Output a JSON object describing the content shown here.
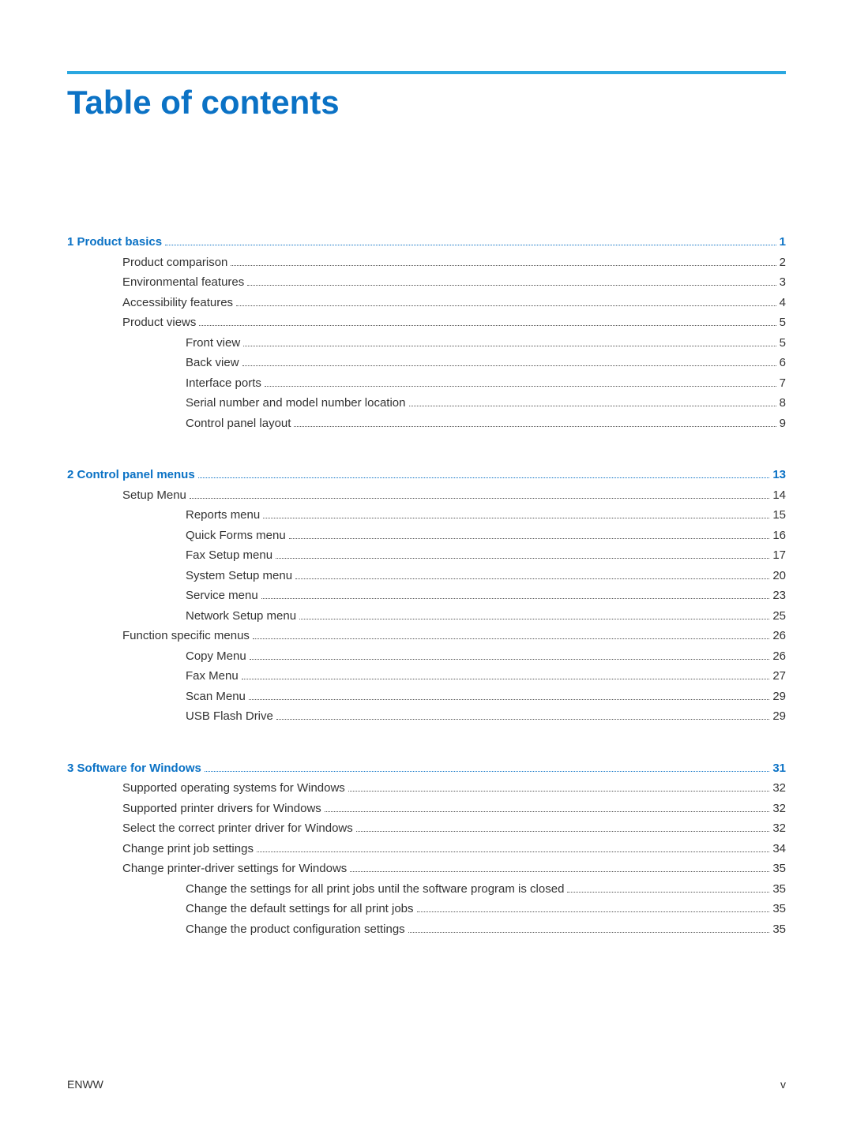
{
  "title": "Table of contents",
  "title_color": "#0b72c5",
  "rule_color": "#2aa7e0",
  "chapter_color": "#0b72c5",
  "body_color": "#333333",
  "footer": {
    "left": "ENWW",
    "right": "v"
  },
  "chapters": [
    {
      "num": "1",
      "label": "Product basics",
      "page": "1",
      "items": [
        {
          "label": "Product comparison",
          "page": "2",
          "level": 1
        },
        {
          "label": "Environmental features",
          "page": "3",
          "level": 1
        },
        {
          "label": "Accessibility features",
          "page": "4",
          "level": 1
        },
        {
          "label": "Product views",
          "page": "5",
          "level": 1
        },
        {
          "label": "Front view",
          "page": "5",
          "level": 2
        },
        {
          "label": "Back view",
          "page": "6",
          "level": 2
        },
        {
          "label": "Interface ports",
          "page": "7",
          "level": 2
        },
        {
          "label": "Serial number and model number location",
          "page": "8",
          "level": 2
        },
        {
          "label": "Control panel layout",
          "page": "9",
          "level": 2
        }
      ]
    },
    {
      "num": "2",
      "label": "Control panel menus",
      "page": "13",
      "items": [
        {
          "label": "Setup Menu",
          "page": "14",
          "level": 1
        },
        {
          "label": "Reports menu",
          "page": "15",
          "level": 2
        },
        {
          "label": "Quick Forms menu",
          "page": "16",
          "level": 2
        },
        {
          "label": "Fax Setup menu",
          "page": "17",
          "level": 2
        },
        {
          "label": "System Setup menu",
          "page": "20",
          "level": 2
        },
        {
          "label": "Service menu",
          "page": "23",
          "level": 2
        },
        {
          "label": "Network Setup menu",
          "page": "25",
          "level": 2
        },
        {
          "label": "Function specific menus",
          "page": "26",
          "level": 1
        },
        {
          "label": "Copy Menu",
          "page": "26",
          "level": 2
        },
        {
          "label": "Fax Menu",
          "page": "27",
          "level": 2
        },
        {
          "label": "Scan Menu",
          "page": "29",
          "level": 2
        },
        {
          "label": "USB Flash Drive",
          "page": "29",
          "level": 2
        }
      ]
    },
    {
      "num": "3",
      "label": "Software for Windows",
      "page": "31",
      "items": [
        {
          "label": "Supported operating systems for Windows",
          "page": "32",
          "level": 1
        },
        {
          "label": "Supported printer drivers for Windows",
          "page": "32",
          "level": 1
        },
        {
          "label": "Select the correct printer driver for Windows",
          "page": "32",
          "level": 1
        },
        {
          "label": "Change print job settings",
          "page": "34",
          "level": 1
        },
        {
          "label": "Change printer-driver settings for Windows",
          "page": "35",
          "level": 1
        },
        {
          "label": "Change the settings for all print jobs until the software program is closed",
          "page": "35",
          "level": 2
        },
        {
          "label": "Change the default settings for all print jobs",
          "page": "35",
          "level": 2
        },
        {
          "label": "Change the product configuration settings",
          "page": "35",
          "level": 2
        }
      ]
    }
  ]
}
